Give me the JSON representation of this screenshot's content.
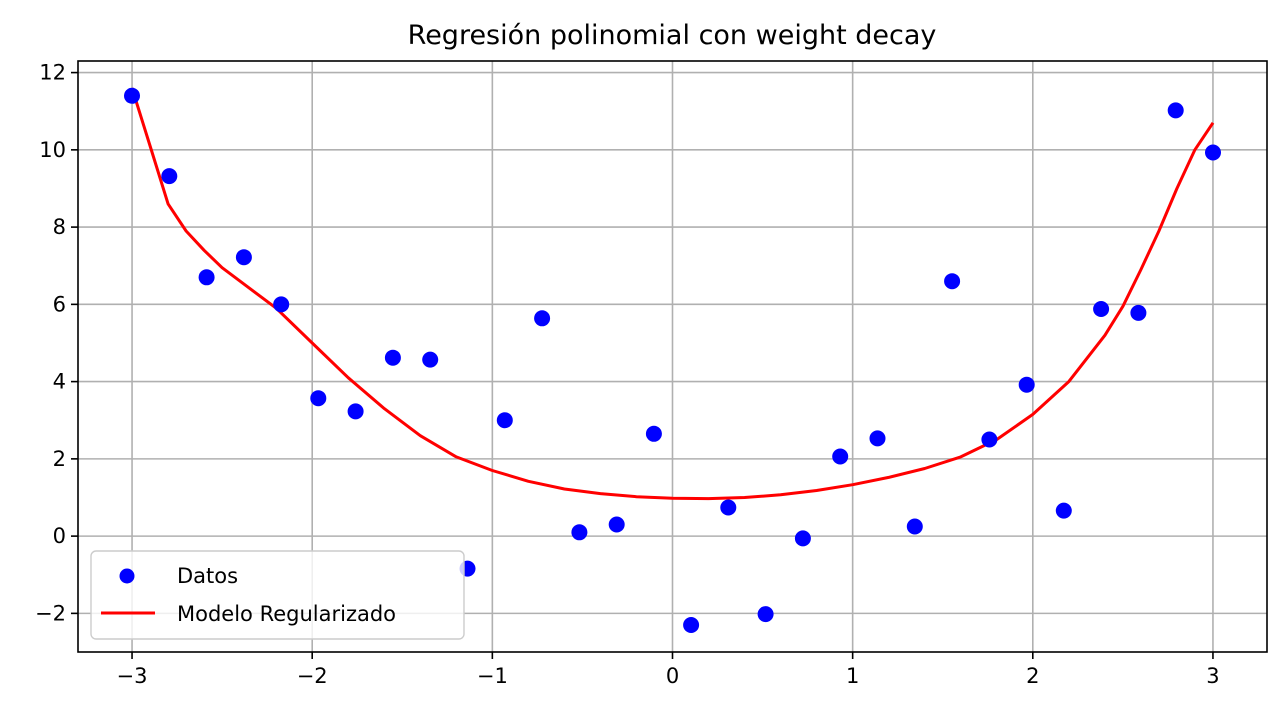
{
  "chart_data": {
    "type": "scatter",
    "title": "Regresión polinomial con weight decay",
    "xlabel": "",
    "ylabel": "",
    "xlim": [
      -3.3,
      3.3
    ],
    "ylim": [
      -3.0,
      12.3
    ],
    "grid": true,
    "legend_position": "lower-left",
    "x_ticks": [
      -3,
      -2,
      -1,
      0,
      1,
      2,
      3
    ],
    "x_tick_labels": [
      "−3",
      "−2",
      "−1",
      "0",
      "1",
      "2",
      "3"
    ],
    "y_ticks": [
      -2,
      0,
      2,
      4,
      6,
      8,
      10,
      12
    ],
    "y_tick_labels": [
      "−2",
      "0",
      "2",
      "4",
      "6",
      "8",
      "10",
      "12"
    ],
    "series": [
      {
        "name": "Datos",
        "kind": "scatter",
        "color": "#0000ff",
        "x": [
          -3.0,
          -2.793,
          -2.586,
          -2.379,
          -2.172,
          -1.966,
          -1.759,
          -1.552,
          -1.345,
          -1.138,
          -0.931,
          -0.724,
          -0.517,
          -0.31,
          -0.103,
          0.103,
          0.31,
          0.517,
          0.724,
          0.931,
          1.138,
          1.345,
          1.552,
          1.759,
          1.966,
          2.172,
          2.379,
          2.586,
          2.793,
          3.0
        ],
        "y": [
          11.4,
          9.32,
          6.7,
          7.22,
          6.0,
          3.57,
          3.23,
          4.62,
          4.57,
          -0.84,
          3.0,
          5.64,
          0.1,
          0.3,
          2.65,
          -2.3,
          0.74,
          -2.02,
          -0.06,
          2.06,
          2.53,
          0.25,
          6.6,
          2.5,
          3.92,
          0.66,
          5.88,
          5.78,
          11.02,
          9.93
        ]
      },
      {
        "name": "Modelo Regularizado",
        "kind": "line",
        "color": "#ff0000",
        "x": [
          -3.0,
          -2.9,
          -2.8,
          -2.7,
          -2.6,
          -2.5,
          -2.4,
          -2.2,
          -2.0,
          -1.8,
          -1.6,
          -1.4,
          -1.2,
          -1.0,
          -0.8,
          -0.6,
          -0.4,
          -0.2,
          0.0,
          0.2,
          0.4,
          0.6,
          0.8,
          1.0,
          1.2,
          1.4,
          1.6,
          1.8,
          2.0,
          2.2,
          2.4,
          2.5,
          2.6,
          2.7,
          2.8,
          2.9,
          3.0
        ],
        "y": [
          11.6,
          10.1,
          8.6,
          7.9,
          7.4,
          6.95,
          6.6,
          5.9,
          5.0,
          4.1,
          3.3,
          2.6,
          2.05,
          1.7,
          1.42,
          1.22,
          1.1,
          1.02,
          0.98,
          0.97,
          1.0,
          1.07,
          1.18,
          1.33,
          1.52,
          1.75,
          2.05,
          2.5,
          3.15,
          4.0,
          5.2,
          5.95,
          6.9,
          7.9,
          9.0,
          10.0,
          10.7
        ]
      }
    ]
  }
}
